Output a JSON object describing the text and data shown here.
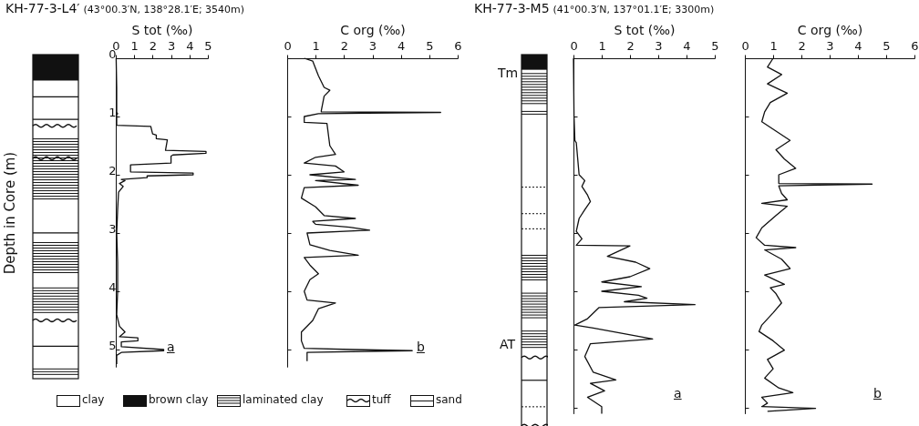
{
  "chart_data": [
    {
      "type": "line",
      "title": "KH-77-3-L4′",
      "subtitle": "(43°00.3′N, 138°28.1′E; 3540m)",
      "xlabel": "S tot (‰)",
      "ylabel": "Depth in Core (m)",
      "orientation": "horizontal",
      "xlim": [
        0,
        5
      ],
      "xticks": [
        0,
        1,
        2,
        3,
        4,
        5
      ],
      "ylim": [
        5.3,
        0
      ],
      "yticks": [
        0,
        1,
        2,
        3,
        4,
        5
      ],
      "annotations": [
        "a",
        "clay",
        "brown clay",
        "laminated clay",
        "tuff",
        "sand"
      ],
      "x": [
        0,
        0.5,
        0.93,
        0.95,
        0.97,
        1.15,
        1.17,
        1.3,
        1.32,
        1.38,
        1.4,
        1.58,
        1.6,
        1.63,
        1.66,
        1.68,
        1.8,
        1.83,
        1.95,
        1.97,
        2.0,
        2.02,
        2.05,
        2.08,
        2.1,
        2.15,
        2.2,
        2.3,
        2.6,
        3.0,
        3.5,
        4.0,
        4.4,
        4.6,
        4.7,
        4.78,
        4.8,
        4.85,
        4.87,
        4.95,
        5.0,
        5.02,
        5.05,
        5.1,
        5.25
      ],
      "series": [
        {
          "color": "#111111",
          "values": [
            0.02,
            0.05,
            0.05,
            0.1,
            0.05,
            0.05,
            1.9,
            2.0,
            2.2,
            2.2,
            2.8,
            2.7,
            4.9,
            4.9,
            3.1,
            3.0,
            3.0,
            0.8,
            0.8,
            4.2,
            4.2,
            1.7,
            1.7,
            0.3,
            0.5,
            0.2,
            0.4,
            0.15,
            0.1,
            0.05,
            0.1,
            0.1,
            0.05,
            0.2,
            0.5,
            0.2,
            1.2,
            1.2,
            0.3,
            0.3,
            2.6,
            2.6,
            0.3,
            0.05,
            0.05
          ]
        }
      ]
    },
    {
      "type": "line",
      "xlabel": "C org (‰)",
      "orientation": "horizontal",
      "xlim": [
        0,
        6
      ],
      "xticks": [
        0,
        1,
        2,
        3,
        4,
        5,
        6
      ],
      "ylim": [
        5.3,
        0
      ],
      "yticks": [
        0,
        1,
        2,
        3,
        4,
        5
      ],
      "tick_labels": "x",
      "annotations": [
        "b"
      ],
      "x": [
        0,
        0.05,
        0.3,
        0.5,
        0.55,
        0.65,
        0.9,
        0.92,
        0.93,
        0.95,
        1.0,
        1.1,
        1.12,
        1.5,
        1.65,
        1.7,
        1.8,
        1.85,
        1.95,
        2.0,
        2.08,
        2.1,
        2.18,
        2.22,
        2.4,
        2.55,
        2.7,
        2.75,
        2.8,
        2.85,
        2.9,
        2.95,
        3.0,
        3.2,
        3.3,
        3.38,
        3.42,
        3.55,
        3.7,
        3.8,
        4.0,
        4.15,
        4.2,
        4.3,
        4.5,
        4.7,
        4.85,
        4.98,
        5.0,
        5.02,
        5.05,
        5.2
      ],
      "series": [
        {
          "color": "#111111",
          "values": [
            0.6,
            0.9,
            1.1,
            1.3,
            1.5,
            1.3,
            1.2,
            1.2,
            5.4,
            1.1,
            0.6,
            0.6,
            1.4,
            1.5,
            1.7,
            1.0,
            0.6,
            1.7,
            2.0,
            0.8,
            2.4,
            1.0,
            2.5,
            0.6,
            0.5,
            1.0,
            1.3,
            2.4,
            0.9,
            1.0,
            2.2,
            2.9,
            0.7,
            0.8,
            1.5,
            2.5,
            0.6,
            0.8,
            1.1,
            0.8,
            0.6,
            0.7,
            1.7,
            1.1,
            0.9,
            0.5,
            0.5,
            0.6,
            2.3,
            4.4,
            0.7,
            0.7
          ]
        }
      ]
    },
    {
      "type": "line",
      "title": "KH-77-3-M5",
      "subtitle": "(41°00.3′N, 137°01.1′E; 3300m)",
      "xlabel": "S tot (‰)",
      "orientation": "horizontal",
      "xlim": [
        0,
        5
      ],
      "xticks": [
        0,
        1,
        2,
        3,
        4,
        5
      ],
      "ylim": [
        6.1,
        0
      ],
      "yticks": [
        0,
        1,
        2,
        3,
        4,
        5,
        6
      ],
      "tick_labels": "x",
      "annotations": [
        "Tm",
        "AT",
        "a"
      ],
      "x": [
        0,
        1.0,
        1.41,
        1.45,
        2.0,
        2.1,
        2.2,
        2.35,
        2.46,
        2.6,
        2.75,
        2.97,
        3.1,
        3.21,
        3.22,
        3.4,
        3.5,
        3.61,
        3.75,
        3.84,
        3.92,
        4.0,
        4.07,
        4.12,
        4.18,
        4.23,
        4.28,
        4.47,
        4.58,
        4.63,
        4.82,
        4.9,
        5.12,
        5.39,
        5.52,
        5.58,
        5.71,
        5.82,
        5.98,
        6.1
      ],
      "series": [
        {
          "color": "#111111",
          "values": [
            0,
            0.02,
            0.05,
            0.1,
            0.2,
            0.4,
            0.3,
            0.5,
            0.6,
            0.4,
            0.2,
            0.1,
            0.3,
            0.1,
            2.0,
            1.2,
            2.2,
            2.7,
            2.0,
            1.0,
            2.4,
            1.0,
            2.3,
            2.6,
            1.8,
            4.3,
            0.9,
            0.5,
            0.05,
            0.7,
            2.8,
            0.6,
            0.4,
            0.7,
            1.5,
            0.6,
            1.1,
            0.5,
            1.0,
            1.0
          ]
        }
      ]
    },
    {
      "type": "line",
      "xlabel": "C org (‰)",
      "orientation": "horizontal",
      "xlim": [
        0,
        6
      ],
      "xticks": [
        0,
        1,
        2,
        3,
        4,
        5,
        6
      ],
      "ylim": [
        6.1,
        0
      ],
      "yticks": [
        0,
        1,
        2,
        3,
        4,
        5,
        6
      ],
      "tick_labels": "x",
      "annotations": [
        "b"
      ],
      "x": [
        0,
        0.15,
        0.28,
        0.44,
        0.6,
        0.76,
        0.92,
        1.09,
        1.25,
        1.41,
        1.57,
        1.73,
        1.89,
        2.0,
        2.15,
        2.16,
        2.19,
        2.32,
        2.43,
        2.49,
        2.54,
        2.7,
        2.91,
        3.08,
        3.21,
        3.25,
        3.29,
        3.45,
        3.61,
        3.72,
        3.88,
        3.94,
        4.04,
        4.2,
        4.37,
        4.58,
        4.69,
        4.85,
        5.01,
        5.17,
        5.33,
        5.49,
        5.66,
        5.74,
        5.82,
        5.92,
        5.98,
        6.01,
        6.06
      ],
      "series": [
        {
          "color": "#111111",
          "values": [
            1.0,
            0.8,
            1.3,
            0.8,
            1.5,
            0.9,
            0.7,
            0.6,
            1.1,
            1.6,
            1.1,
            1.4,
            1.8,
            1.2,
            1.2,
            4.5,
            1.2,
            1.3,
            1.5,
            0.6,
            1.5,
            1.1,
            0.6,
            0.4,
            0.7,
            1.8,
            0.7,
            1.3,
            1.6,
            0.7,
            1.4,
            0.9,
            1.1,
            1.3,
            1.0,
            0.6,
            0.5,
            1.0,
            1.4,
            0.8,
            1.0,
            0.7,
            1.2,
            1.7,
            0.6,
            0.8,
            0.6,
            2.5,
            0.8
          ]
        }
      ]
    }
  ]
}
